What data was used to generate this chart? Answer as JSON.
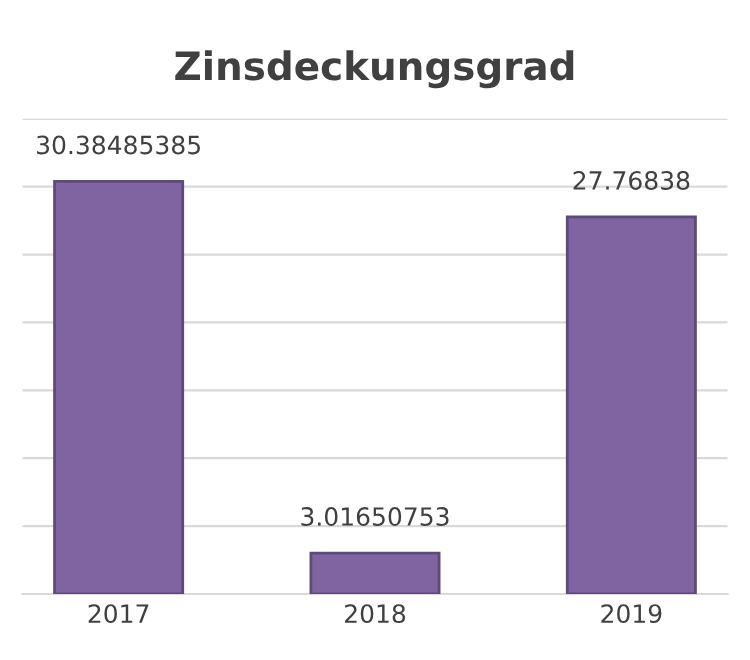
{
  "chart_data": {
    "type": "bar",
    "title": "Zinsdeckungsgrad",
    "categories": [
      "2017",
      "2018",
      "2019"
    ],
    "values": [
      30.38485385,
      3.01650753,
      27.76838
    ],
    "color": "#8064a2",
    "data_labels": true,
    "ylim": [
      0,
      35
    ],
    "yticks": [
      {
        "value": 0,
        "label": null
      },
      {
        "value": 5,
        "label": null
      },
      {
        "value": 10,
        "label": null
      },
      {
        "value": 15,
        "label": null
      },
      {
        "value": 20,
        "label": null
      },
      {
        "value": 25,
        "label": null
      },
      {
        "value": 30,
        "label": null
      },
      {
        "value": 35,
        "label": null
      }
    ],
    "grid": "y",
    "tick_labels": "x",
    "legend": false
  }
}
